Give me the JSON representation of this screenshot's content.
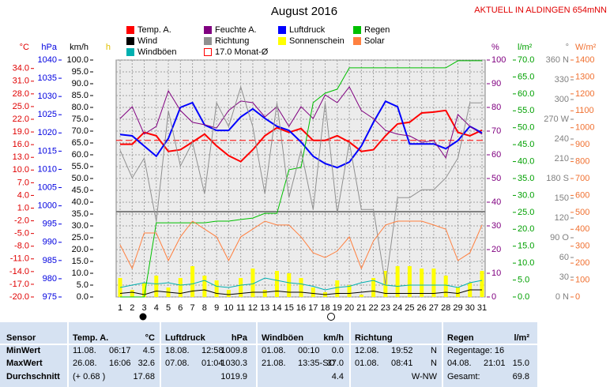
{
  "header": "AKTUELL IN ALDINGEN 654mNN",
  "chart_data": {
    "type": "line",
    "title": "August 2016",
    "grid": true,
    "categories": [
      "1",
      "2",
      "3",
      "4",
      "5",
      "6",
      "7",
      "8",
      "9",
      "10",
      "11",
      "12",
      "13",
      "14",
      "15",
      "16",
      "17",
      "18",
      "19",
      "20",
      "21",
      "22",
      "23",
      "24",
      "25",
      "26",
      "27",
      "28",
      "29",
      "30",
      "31"
    ],
    "axes": [
      {
        "label": "°C",
        "color": "#e00000",
        "ylim": [
          -20,
          36
        ],
        "yticks": [
          {
            "value": 34,
            "label": "34.0"
          },
          {
            "value": 31,
            "label": "31.0"
          },
          {
            "value": 28,
            "label": "28.0"
          },
          {
            "value": 25,
            "label": "25.0"
          },
          {
            "value": 22,
            "label": "22.0"
          },
          {
            "value": 19,
            "label": "19.0"
          },
          {
            "value": 16,
            "label": "16.0"
          },
          {
            "value": 13,
            "label": "13.0"
          },
          {
            "value": 10,
            "label": "10.0"
          },
          {
            "value": 7,
            "label": "7.0"
          },
          {
            "value": 4,
            "label": "4.0"
          },
          {
            "value": 1,
            "label": "1.0"
          },
          {
            "value": -2,
            "label": "-2.0"
          },
          {
            "value": -5,
            "label": "-5.0"
          },
          {
            "value": -8,
            "label": "-8.0"
          },
          {
            "value": -11,
            "label": "-11.0"
          },
          {
            "value": -14,
            "label": "-14.0"
          },
          {
            "value": -17,
            "label": "-17.0"
          },
          {
            "value": -20,
            "label": "-20.0"
          }
        ],
        "series": [
          {
            "name": "Temp. A.",
            "color": "#ff0000",
            "values": [
              16.1,
              16.1,
              18.9,
              18.1,
              14.4,
              14.8,
              16.6,
              18.5,
              15.7,
              13.4,
              12.0,
              14.8,
              18.1,
              20.0,
              18.9,
              19.8,
              17.0,
              17.0,
              18.1,
              16.6,
              14.4,
              14.8,
              18.1,
              20.9,
              21.3,
              23.5,
              23.7,
              24.1,
              18.9,
              18.1,
              19.4
            ]
          }
        ],
        "reference": {
          "value": 17.0,
          "label": "17.0 Monat-Ø",
          "color": "#ff0000"
        }
      },
      {
        "label": "hPa",
        "color": "#0000e0",
        "ylim": [
          975,
          1040
        ],
        "yticks": [
          1040,
          1035,
          1030,
          1025,
          1020,
          1015,
          1010,
          1005,
          1000,
          995,
          990,
          985,
          980,
          975
        ],
        "series": [
          {
            "name": "Luftdruck",
            "color": "#0000ff",
            "values": [
              1019.6,
              1019.2,
              1016.4,
              1013.6,
              1018.5,
              1027.0,
              1028.3,
              1022.2,
              1020.7,
              1020.7,
              1024.4,
              1026.6,
              1024.0,
              1021.8,
              1020.7,
              1017.5,
              1013.6,
              1011.6,
              1010.5,
              1012.0,
              1016.4,
              1022.9,
              1028.7,
              1027.2,
              1017.0,
              1017.0,
              1017.0,
              1015.7,
              1017.9,
              1021.8,
              1020.0
            ]
          }
        ]
      },
      {
        "label": "km/h",
        "color": "#000000",
        "ylim": [
          0,
          100
        ],
        "yticks": [
          {
            "value": 100,
            "label": "100.0"
          },
          {
            "value": 95,
            "label": "95.0"
          },
          {
            "value": 90,
            "label": "90.0"
          },
          {
            "value": 85,
            "label": "85.0"
          },
          {
            "value": 80,
            "label": "80.0"
          },
          {
            "value": 75,
            "label": "75.0"
          },
          {
            "value": 70,
            "label": "70.0"
          },
          {
            "value": 65,
            "label": "65.0"
          },
          {
            "value": 60,
            "label": "60.0"
          },
          {
            "value": 55,
            "label": "55.0"
          },
          {
            "value": 50,
            "label": "50.0"
          },
          {
            "value": 45,
            "label": "45.0"
          },
          {
            "value": 40,
            "label": "40.0"
          },
          {
            "value": 35,
            "label": "35.0"
          },
          {
            "value": 30,
            "label": "30.0"
          },
          {
            "value": 25,
            "label": "25.0"
          },
          {
            "value": 20,
            "label": "20.0"
          },
          {
            "value": 15,
            "label": "15.0"
          },
          {
            "value": 10,
            "label": "10.0"
          },
          {
            "value": 5,
            "label": "5.0"
          },
          {
            "value": 0,
            "label": "0.0"
          }
        ],
        "series": [
          {
            "name": "Wind",
            "color": "#000000",
            "values": [
              1.5,
              2,
              1,
              2.5,
              2,
              1.5,
              2.5,
              3,
              1.5,
              1,
              1.5,
              2,
              2,
              2.5,
              2,
              2,
              1.5,
              1,
              1.5,
              1.5,
              2,
              2.5,
              1.5,
              1.5,
              1.5,
              1.5,
              1.5,
              2,
              1.5,
              3,
              3
            ]
          },
          {
            "name": "Windböen",
            "color": "#00b0b0",
            "values": [
              4,
              5,
              6,
              5.5,
              6,
              5,
              5.5,
              7,
              4.5,
              4,
              5,
              5.5,
              8,
              7,
              6,
              5.5,
              4.5,
              3,
              4,
              4.5,
              6,
              7,
              5,
              4.5,
              5,
              5,
              5,
              5,
              4,
              6,
              7
            ]
          }
        ]
      },
      {
        "label": "h",
        "color": "#e0c000",
        "ylim": [
          0,
          100
        ],
        "series": [
          {
            "name": "Sonnenschein",
            "color": "#ffff00",
            "type": "bar",
            "values": [
              8,
              3,
              6,
              9,
              4,
              8,
              13,
              9,
              7,
              3,
              8,
              12,
              3,
              11,
              10,
              8,
              4,
              2,
              7,
              5,
              1,
              8,
              11,
              13,
              13,
              12,
              12,
              9,
              4,
              6,
              11
            ]
          }
        ]
      },
      {
        "label": "%",
        "color": "#800080",
        "ylim": [
          0,
          100
        ],
        "yticks": [
          100,
          90,
          80,
          70,
          60,
          50,
          40,
          30,
          20,
          10,
          0
        ],
        "series": [
          {
            "name": "Feuchte A.",
            "color": "#800080",
            "values": [
              75.3,
              80.3,
              68.7,
              72.0,
              87.0,
              78.7,
              73.7,
              72.7,
              71.3,
              78.7,
              82.7,
              82.0,
              76.0,
              80.3,
              72.0,
              80.3,
              75.3,
              85.3,
              82.0,
              88.7,
              78.7,
              75.3,
              70.3,
              68.7,
              68.0,
              65.3,
              66.0,
              58.7,
              77.0,
              72.0,
              68.7
            ]
          }
        ]
      },
      {
        "label": "l/m²",
        "color": "#00a000",
        "ylim": [
          0,
          70
        ],
        "yticks": [
          {
            "value": 70,
            "label": "70.0"
          },
          {
            "value": 65,
            "label": "65.0"
          },
          {
            "value": 60,
            "label": "60.0"
          },
          {
            "value": 55,
            "label": "55.0"
          },
          {
            "value": 50,
            "label": "50.0"
          },
          {
            "value": 45,
            "label": "45.0"
          },
          {
            "value": 40,
            "label": "40.0"
          },
          {
            "value": 35,
            "label": "35.0"
          },
          {
            "value": 30,
            "label": "30.0"
          },
          {
            "value": 25,
            "label": "25.0"
          },
          {
            "value": 20,
            "label": "20.0"
          },
          {
            "value": 15,
            "label": "15.0"
          },
          {
            "value": 10,
            "label": "10.0"
          },
          {
            "value": 5,
            "label": "5.0"
          },
          {
            "value": 0,
            "label": "0.0"
          }
        ],
        "series": [
          {
            "name": "Regen",
            "color": "#00c000",
            "values": [
              0,
              0,
              0,
              21.9,
              21.9,
              21.9,
              21.9,
              21.9,
              22.4,
              22.4,
              22.9,
              23.3,
              24.7,
              24.7,
              37.6,
              38.3,
              57.4,
              60.2,
              61.4,
              67.7,
              67.7,
              67.7,
              67.7,
              67.7,
              67.7,
              67.7,
              67.7,
              67.7,
              69.8,
              69.8,
              69.8
            ]
          }
        ]
      },
      {
        "label": "°",
        "color": "#808080",
        "ylim": [
          0,
          360
        ],
        "yticks": [
          {
            "value": 360,
            "label": "360 N"
          },
          330,
          300,
          {
            "value": 270,
            "label": "270 W"
          },
          240,
          210,
          {
            "value": 180,
            "label": "180 S"
          },
          150,
          120,
          {
            "value": 90,
            "label": "90 O"
          },
          60,
          30,
          {
            "value": 0,
            "label": "0 N"
          }
        ],
        "series": [
          {
            "name": "Richtung",
            "color": "#909090",
            "values": [
              223,
              181,
              211,
              115,
              283,
              199,
              235,
              157,
              295,
              259,
              319,
              259,
              157,
              295,
              151,
              223,
              133,
              295,
              127,
              235,
              133,
              133,
              19,
              151,
              151,
              163,
              163,
              181,
              211,
              295,
              295
            ]
          }
        ]
      },
      {
        "label": "W/m²",
        "color": "#f07030",
        "ylim": [
          0,
          1400
        ],
        "yticks": [
          1400,
          1300,
          1200,
          1100,
          1000,
          900,
          800,
          700,
          600,
          500,
          400,
          300,
          200,
          100,
          0
        ],
        "series": [
          {
            "name": "Solar",
            "color": "#ff8040",
            "values": [
              308,
              168,
              378,
              378,
              215,
              355,
              448,
              401,
              355,
              215,
              355,
              401,
              448,
              425,
              425,
              355,
              261,
              233,
              271,
              355,
              168,
              331,
              425,
              448,
              448,
              448,
              425,
              401,
              215,
              261,
              425
            ]
          }
        ]
      }
    ]
  },
  "table": {
    "sensor_label": "Sensor",
    "row_labels": [
      "MinWert",
      "MaxWert",
      "Durchschnitt"
    ],
    "groups": [
      {
        "name": "Temp. A.",
        "unit": "°C",
        "rows": [
          [
            "11.08.",
            "06:17",
            "4.5"
          ],
          [
            "26.08.",
            "16:06",
            "32.6"
          ],
          [
            "(+ 0.68 )",
            "17.68"
          ]
        ]
      },
      {
        "name": "Luftdruck",
        "unit": "hPa",
        "rows": [
          [
            "18.08.",
            "12:58",
            "1009.8"
          ],
          [
            "07.08.",
            "01:04",
            "1030.3"
          ],
          [
            "1019.9"
          ]
        ]
      },
      {
        "name": "Windböen",
        "unit": "km/h",
        "rows": [
          [
            "01.08.",
            "00:10",
            "0.0"
          ],
          [
            "21.08.",
            "13:35-SO",
            "37.0"
          ],
          [
            "4.4"
          ]
        ]
      },
      {
        "name": "Richtung",
        "rows": [
          [
            "12.08.",
            "19:52",
            "N"
          ],
          [
            "01.08.",
            "08:41",
            "N"
          ],
          [
            "W-NW"
          ]
        ]
      },
      {
        "name": "Regen",
        "unit": "l/m²",
        "rows": [
          [
            "Regentage: 16"
          ],
          [
            "04.08.",
            "21:01",
            "15.0"
          ],
          [
            "Gesamt:",
            "69.8"
          ]
        ]
      }
    ]
  }
}
